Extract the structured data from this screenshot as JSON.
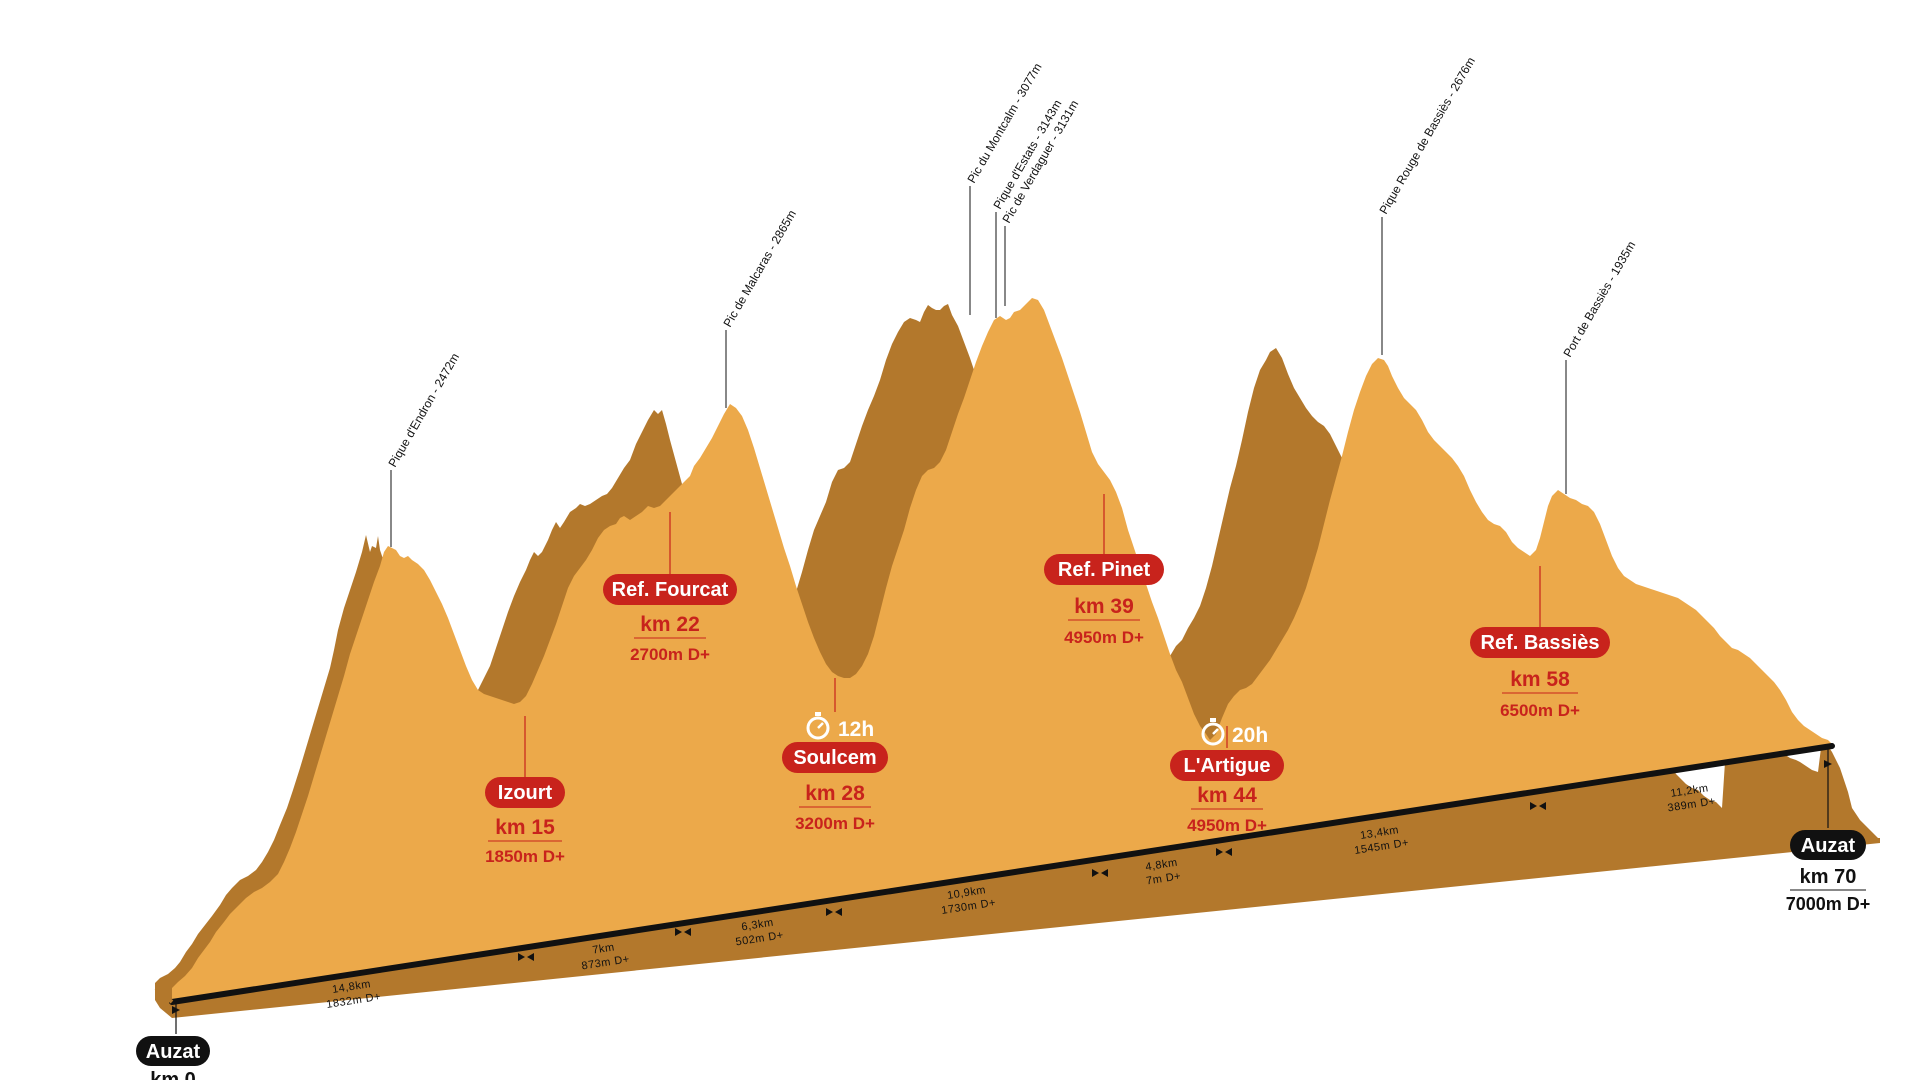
{
  "colors": {
    "terrain": "#eca94a",
    "terrain_edge": "#b3782c",
    "checkpoint_red": "#c8231c",
    "baseline": "#111111",
    "timer": "#f0a040"
  },
  "start": {
    "name": "Auzat",
    "km": "km 0"
  },
  "finish": {
    "name": "Auzat",
    "km": "km 70",
    "elevation": "7000m D+"
  },
  "peaks": [
    {
      "label": "Pique d'Endron - 2472m",
      "km": 10.5
    },
    {
      "label": "Pic de Malcaras - 2865m",
      "km": 24.5
    },
    {
      "label": "Pic du Montcalm - 3077m",
      "km": 32.5
    },
    {
      "label": "Pique d'Estats - 3143m",
      "km": 33.3
    },
    {
      "label": "Pic de Verdaguer - 3131m",
      "km": 33.8
    },
    {
      "label": "Pique Rouge de Bassiès - 2676m",
      "km": 52.5
    },
    {
      "label": "Port de Bassiès - 1935m",
      "km": 59.2
    }
  ],
  "checkpoints": [
    {
      "name": "Izourt",
      "km": "km 15",
      "elevation": "1850m D+",
      "timer": ""
    },
    {
      "name": "Ref. Fourcat",
      "km": "km 22",
      "elevation": "2700m D+",
      "timer": ""
    },
    {
      "name": "Soulcem",
      "km": "km 28",
      "elevation": "3200m D+",
      "timer": "12h"
    },
    {
      "name": "Ref. Pinet",
      "km": "km 39",
      "elevation": "4950m D+",
      "timer": ""
    },
    {
      "name": "L'Artigue",
      "km": "km 44",
      "elevation": "4950m D+",
      "timer": "20h"
    },
    {
      "name": "Ref. Bassiès",
      "km": "km 58",
      "elevation": "6500m D+",
      "timer": ""
    }
  ],
  "segments": [
    {
      "distance": "14,8km",
      "gain": "1832m D+"
    },
    {
      "distance": "7km",
      "gain": "873m D+"
    },
    {
      "distance": "6,3km",
      "gain": "502m D+"
    },
    {
      "distance": "10,9km",
      "gain": "1730m D+"
    },
    {
      "distance": "4,8km",
      "gain": "7m D+"
    },
    {
      "distance": "13,4km",
      "gain": "1545m D+"
    },
    {
      "distance": "11,2km",
      "gain": "389m D+"
    }
  ]
}
